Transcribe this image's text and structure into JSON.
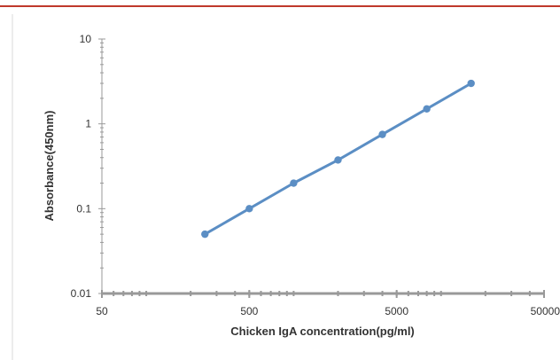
{
  "chart_data": {
    "type": "line",
    "title": "",
    "xlabel": "Chicken IgA concentration(pg/ml)",
    "ylabel": "Absorbance(450nm)",
    "x_scale": "log",
    "y_scale": "log",
    "xlim": [
      50,
      50000
    ],
    "ylim": [
      0.01,
      10
    ],
    "x_ticks": [
      50,
      500,
      5000,
      50000
    ],
    "x_tick_labels": [
      "50",
      "500",
      "5000",
      "50000"
    ],
    "y_ticks": [
      0.01,
      0.1,
      1,
      10
    ],
    "y_tick_labels": [
      "0.01",
      "0.1",
      "1",
      "10"
    ],
    "grid": false,
    "legend": "none",
    "series": [
      {
        "color": "#5b8ec4",
        "x": [
          250,
          500,
          1000,
          2000,
          4000,
          8000,
          16000
        ],
        "y": [
          0.05,
          0.1,
          0.2,
          0.375,
          0.75,
          1.5,
          3.0
        ]
      }
    ]
  },
  "colors": {
    "top_rule": "#c0392b",
    "axis": "#999999",
    "frame_border": "#d9d9d9"
  }
}
